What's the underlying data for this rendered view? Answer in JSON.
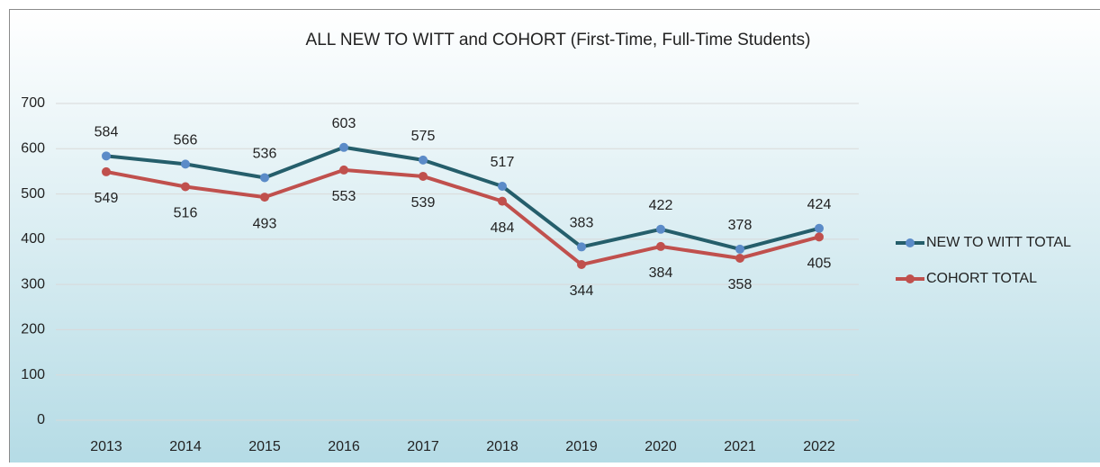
{
  "chart_data": {
    "type": "line",
    "title": "ALL NEW TO WITT and COHORT (First-Time, Full-Time Students)",
    "categories": [
      "2013",
      "2014",
      "2015",
      "2016",
      "2017",
      "2018",
      "2019",
      "2020",
      "2021",
      "2022"
    ],
    "series": [
      {
        "name": "NEW TO WITT TOTAL",
        "color": "#255e6b",
        "marker_color": "#5b8bc8",
        "values": [
          584,
          566,
          536,
          603,
          575,
          517,
          383,
          422,
          378,
          424
        ]
      },
      {
        "name": "COHORT TOTAL",
        "color": "#c0504d",
        "marker_color": "#c0504d",
        "values": [
          549,
          516,
          493,
          553,
          539,
          484,
          344,
          384,
          358,
          405
        ]
      }
    ],
    "ylim": [
      0,
      700
    ],
    "yticks": [
      0,
      100,
      200,
      300,
      400,
      500,
      600,
      700
    ],
    "grid": true,
    "legend": "right"
  }
}
